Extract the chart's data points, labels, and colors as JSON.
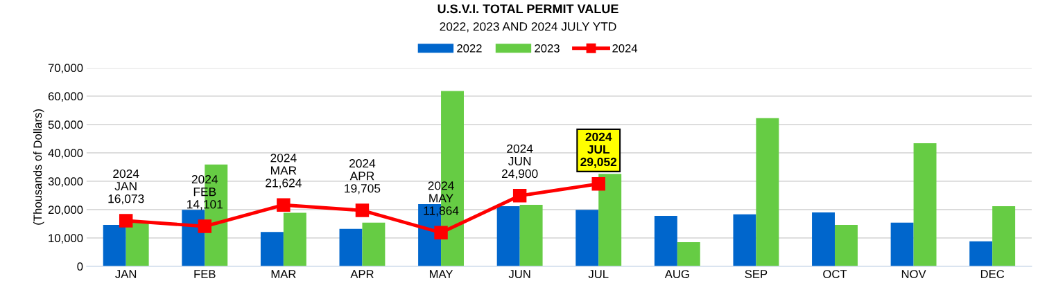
{
  "chart_data": {
    "type": "bar",
    "title": "U.S.V.I. TOTAL PERMIT VALUE",
    "subtitle": "2022, 2023 AND 2024 JULY YTD",
    "ylabel": "(Thousands of Dollars)",
    "categories": [
      "JAN",
      "FEB",
      "MAR",
      "APR",
      "MAY",
      "JUN",
      "JUL",
      "AUG",
      "SEP",
      "OCT",
      "NOV",
      "DEC"
    ],
    "series": [
      {
        "name": "2022",
        "color": "#0066cc",
        "values": [
          14600,
          19900,
          12100,
          13200,
          21900,
          21200,
          19900,
          17800,
          18300,
          19000,
          15400,
          8800
        ]
      },
      {
        "name": "2023",
        "color": "#66cc44",
        "values": [
          15500,
          35900,
          18900,
          15400,
          61800,
          21700,
          32600,
          8500,
          52200,
          14600,
          43400,
          21200
        ]
      },
      {
        "name": "2024",
        "color": "#ff0000",
        "type": "line",
        "marker": "square",
        "values": [
          16073,
          14101,
          21624,
          19705,
          11864,
          24900,
          29052,
          null,
          null,
          null,
          null,
          null
        ],
        "value_labels": [
          "2024\nJAN\n16,073",
          "2024\nFEB\n14,101",
          "2024\nMAR\n21,624",
          "2024\nAPR\n19,705",
          "2024\nMAY\n11,864",
          "2024\nJUN\n24,900",
          "2024\nJUL\n29,052",
          null,
          null,
          null,
          null,
          null
        ]
      }
    ],
    "ylim": [
      0,
      70000
    ],
    "yticks": [
      {
        "value": 0,
        "label": "0"
      },
      {
        "value": 10000,
        "label": "10,000"
      },
      {
        "value": 20000,
        "label": "20,000"
      },
      {
        "value": 30000,
        "label": "30,000"
      },
      {
        "value": 40000,
        "label": "40,000"
      },
      {
        "value": 50000,
        "label": "50,000"
      },
      {
        "value": 60000,
        "label": "60,000"
      },
      {
        "value": 70000,
        "label": "70,000"
      }
    ],
    "grid": "y",
    "legend": "top"
  }
}
